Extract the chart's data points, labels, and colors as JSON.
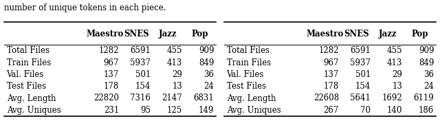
{
  "table1_header": [
    "Maestro",
    "SNES",
    "Jazz",
    "Pop"
  ],
  "table2_header": [
    "Maestro",
    "SNES",
    "Jazz",
    "Pop"
  ],
  "rows": [
    "Total Files",
    "Train Files",
    "Val. Files",
    "Test Files",
    "Avg. Length",
    "Avg. Uniques"
  ],
  "table1_data": [
    [
      "1282",
      "6591",
      "455",
      "909"
    ],
    [
      "967",
      "5937",
      "413",
      "849"
    ],
    [
      "137",
      "501",
      "29",
      "36"
    ],
    [
      "178",
      "154",
      "13",
      "24"
    ],
    [
      "22820",
      "7316",
      "2147",
      "6831"
    ],
    [
      "231",
      "95",
      "125",
      "149"
    ]
  ],
  "table2_data": [
    [
      "1282",
      "6591",
      "455",
      "909"
    ],
    [
      "967",
      "5937",
      "413",
      "849"
    ],
    [
      "137",
      "501",
      "29",
      "36"
    ],
    [
      "178",
      "154",
      "13",
      "24"
    ],
    [
      "22608",
      "5641",
      "1692",
      "6119"
    ],
    [
      "267",
      "70",
      "140",
      "186"
    ]
  ],
  "caption": "number of unique tokens in each piece.",
  "font_size": 8.5,
  "header_font_size": 8.5
}
